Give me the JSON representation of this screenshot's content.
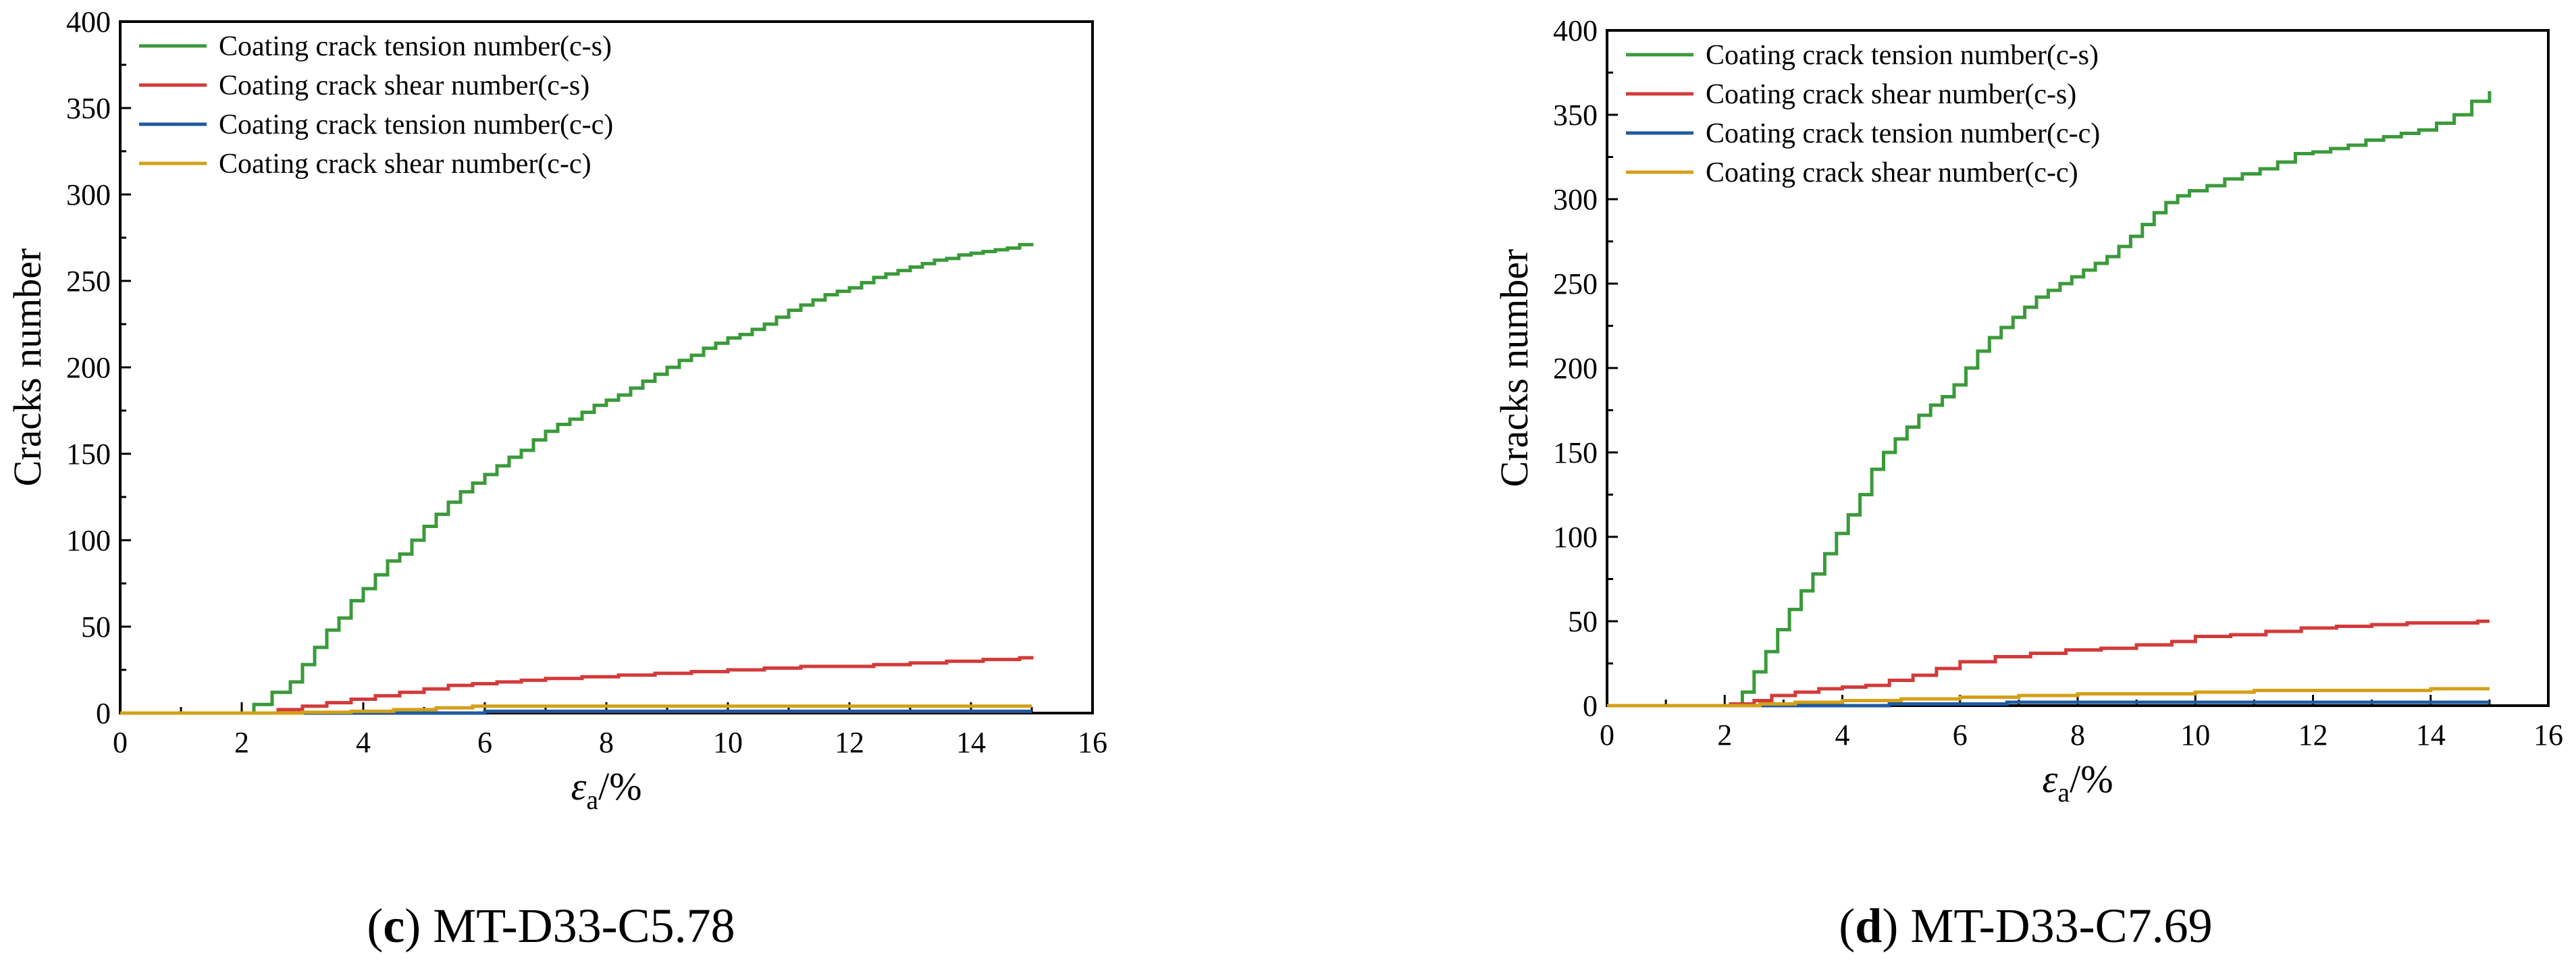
{
  "chart_data": [
    {
      "type": "line",
      "panel_letter": "c",
      "caption": "MT-D33-C5.78",
      "ylabel": "Cracks number",
      "xlabel_symbol": "ε",
      "xlabel_sub": "a",
      "xlabel_unit": "/%",
      "xlim": [
        0,
        16
      ],
      "ylim": [
        0,
        400
      ],
      "xticks": [
        0,
        2,
        4,
        6,
        8,
        10,
        12,
        14,
        16
      ],
      "yticks": [
        0,
        50,
        100,
        150,
        200,
        250,
        300,
        350,
        400
      ],
      "grid": false,
      "legend_position": "top-left",
      "series": [
        {
          "name": "Coating crack tension number(c-s)",
          "color": "#3a9a3a",
          "x": [
            0,
            2.0,
            2.2,
            2.5,
            2.8,
            3.0,
            3.2,
            3.4,
            3.6,
            3.8,
            4.0,
            4.2,
            4.4,
            4.6,
            4.8,
            5.0,
            5.2,
            5.4,
            5.6,
            5.8,
            6.0,
            6.2,
            6.4,
            6.6,
            6.8,
            7.0,
            7.2,
            7.4,
            7.6,
            7.8,
            8.0,
            8.2,
            8.4,
            8.6,
            8.8,
            9.0,
            9.2,
            9.4,
            9.6,
            9.8,
            10.0,
            10.2,
            10.4,
            10.6,
            10.8,
            11.0,
            11.2,
            11.4,
            11.6,
            11.8,
            12.0,
            12.2,
            12.4,
            12.6,
            12.8,
            13.0,
            13.2,
            13.4,
            13.6,
            13.8,
            14.0,
            14.2,
            14.4,
            14.6,
            14.8,
            15.0
          ],
          "y": [
            0,
            0,
            5,
            12,
            18,
            28,
            38,
            48,
            55,
            65,
            72,
            80,
            88,
            92,
            100,
            108,
            115,
            122,
            128,
            133,
            138,
            143,
            148,
            152,
            158,
            163,
            167,
            170,
            174,
            178,
            181,
            184,
            188,
            192,
            196,
            200,
            204,
            207,
            211,
            214,
            217,
            219,
            222,
            225,
            229,
            233,
            236,
            239,
            242,
            244,
            246,
            249,
            252,
            254,
            256,
            258,
            260,
            262,
            263,
            265,
            266,
            267,
            268,
            269,
            271,
            272
          ]
        },
        {
          "name": "Coating crack shear number(c-s)",
          "color": "#d23a3a",
          "x": [
            0,
            2.6,
            3.0,
            3.4,
            3.8,
            4.2,
            4.6,
            5.0,
            5.4,
            5.8,
            6.2,
            6.6,
            7.0,
            7.6,
            8.2,
            8.8,
            9.4,
            10.0,
            10.6,
            11.2,
            11.8,
            12.4,
            13.0,
            13.6,
            14.2,
            14.8,
            15.0
          ],
          "y": [
            0,
            2,
            4,
            6,
            8,
            10,
            12,
            14,
            16,
            17,
            18,
            19,
            20,
            21,
            22,
            23,
            24,
            25,
            26,
            27,
            27,
            28,
            29,
            30,
            31,
            32,
            33
          ]
        },
        {
          "name": "Coating crack tension number(c-c)",
          "color": "#1f5aa0",
          "x": [
            0,
            5.5,
            6.0,
            15.0
          ],
          "y": [
            0,
            0,
            1,
            1
          ]
        },
        {
          "name": "Coating crack shear number(c-c)",
          "color": "#d4a017",
          "x": [
            0,
            3.0,
            3.8,
            4.5,
            5.2,
            5.8,
            6.5,
            15.0
          ],
          "y": [
            0,
            0.5,
            1,
            2,
            3,
            4,
            4,
            4
          ]
        }
      ]
    },
    {
      "type": "line",
      "panel_letter": "d",
      "caption": "MT-D33-C7.69",
      "ylabel": "Cracks number",
      "xlabel_symbol": "ε",
      "xlabel_sub": "a",
      "xlabel_unit": "/%",
      "xlim": [
        0,
        16
      ],
      "ylim": [
        0,
        400
      ],
      "xticks": [
        0,
        2,
        4,
        6,
        8,
        10,
        12,
        14,
        16
      ],
      "yticks": [
        0,
        50,
        100,
        150,
        200,
        250,
        300,
        350,
        400
      ],
      "grid": false,
      "legend_position": "top-left",
      "series": [
        {
          "name": "Coating crack tension number(c-s)",
          "color": "#3a9a3a",
          "x": [
            0,
            2.1,
            2.3,
            2.5,
            2.7,
            2.9,
            3.1,
            3.3,
            3.5,
            3.7,
            3.9,
            4.1,
            4.3,
            4.5,
            4.7,
            4.9,
            5.1,
            5.3,
            5.5,
            5.7,
            5.9,
            6.1,
            6.3,
            6.5,
            6.7,
            6.9,
            7.1,
            7.3,
            7.5,
            7.7,
            7.9,
            8.1,
            8.3,
            8.5,
            8.7,
            8.9,
            9.1,
            9.3,
            9.5,
            9.7,
            9.9,
            10.2,
            10.5,
            10.8,
            11.1,
            11.4,
            11.7,
            12.0,
            12.3,
            12.6,
            12.9,
            13.2,
            13.5,
            13.8,
            14.1,
            14.4,
            14.7,
            15.0
          ],
          "y": [
            0,
            0,
            8,
            20,
            32,
            45,
            57,
            68,
            78,
            90,
            102,
            113,
            125,
            140,
            150,
            158,
            165,
            172,
            178,
            183,
            190,
            200,
            210,
            218,
            224,
            230,
            236,
            242,
            246,
            250,
            254,
            258,
            262,
            266,
            272,
            278,
            285,
            292,
            298,
            302,
            305,
            308,
            312,
            315,
            318,
            322,
            327,
            328,
            330,
            332,
            335,
            337,
            339,
            341,
            345,
            350,
            358,
            364
          ]
        },
        {
          "name": "Coating crack shear number(c-s)",
          "color": "#d23a3a",
          "x": [
            0,
            2.1,
            2.5,
            2.8,
            3.2,
            3.6,
            4.0,
            4.4,
            4.8,
            5.2,
            5.6,
            6.0,
            6.6,
            7.2,
            7.8,
            8.4,
            9.0,
            9.6,
            10.0,
            10.6,
            11.2,
            11.8,
            12.4,
            13.0,
            13.6,
            14.2,
            14.8,
            15.0
          ],
          "y": [
            0,
            1,
            3,
            6,
            8,
            10,
            11,
            12,
            15,
            18,
            22,
            26,
            29,
            31,
            33,
            34,
            36,
            38,
            41,
            42,
            44,
            46,
            47,
            48,
            49,
            49,
            50,
            50
          ]
        },
        {
          "name": "Coating crack tension number(c-c)",
          "color": "#1f5aa0",
          "x": [
            0,
            4.8,
            6.8,
            15.0
          ],
          "y": [
            0,
            1,
            2,
            2
          ]
        },
        {
          "name": "Coating crack shear number(c-c)",
          "color": "#d4a017",
          "x": [
            0,
            2.6,
            3.2,
            4.0,
            5.0,
            6.0,
            7.0,
            8.0,
            9.0,
            10.0,
            11.0,
            12.0,
            13.0,
            14.0,
            15.0
          ],
          "y": [
            0,
            1,
            2,
            3,
            4,
            5,
            6,
            7,
            7,
            8,
            9,
            9,
            9,
            10,
            10
          ]
        }
      ]
    }
  ]
}
